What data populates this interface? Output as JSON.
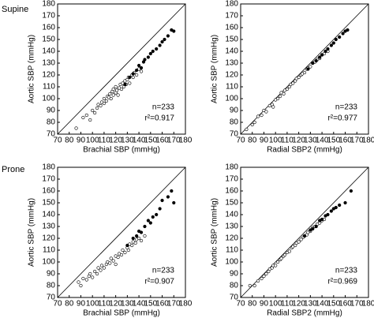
{
  "chart_data": [
    {
      "type": "scatter",
      "row_label": "Supine",
      "x_label": "Brachial SBP (mmHg)",
      "y_label": "Aortic SBP (mmHg)",
      "xlim": [
        70,
        180
      ],
      "ylim": [
        70,
        180
      ],
      "xticks": [
        70,
        80,
        90,
        100,
        110,
        120,
        130,
        140,
        150,
        160,
        170,
        180
      ],
      "yticks": [
        70,
        80,
        90,
        100,
        110,
        120,
        130,
        140,
        150,
        160,
        170,
        180
      ],
      "identity_line": true,
      "annotations": [
        "n=233",
        "r²=0.917"
      ],
      "series": [
        {
          "color": "#000000",
          "fill": "#ffffff",
          "x": [
            86,
            92,
            95,
            98,
            100,
            102,
            104,
            105,
            107,
            108,
            110,
            110,
            112,
            113,
            114,
            115,
            116,
            117,
            118,
            118,
            120,
            120,
            121,
            122,
            123,
            124,
            125,
            126,
            127,
            128,
            129,
            130,
            131,
            132,
            134,
            135,
            136,
            138,
            140,
            142
          ],
          "y": [
            75,
            84,
            86,
            82,
            90,
            88,
            92,
            95,
            94,
            97,
            96,
            100,
            98,
            102,
            101,
            104,
            100,
            106,
            103,
            108,
            105,
            110,
            107,
            103,
            109,
            112,
            108,
            113,
            110,
            115,
            112,
            116,
            118,
            113,
            120,
            118,
            122,
            120,
            125,
            123
          ]
        },
        {
          "color": "#000000",
          "fill": "#000000",
          "x": [
            128,
            132,
            135,
            138,
            140,
            142,
            144,
            145,
            148,
            150,
            152,
            155,
            158,
            160,
            162,
            165,
            168,
            170
          ],
          "y": [
            112,
            118,
            121,
            124,
            128,
            126,
            131,
            133,
            135,
            138,
            140,
            142,
            145,
            148,
            150,
            153,
            158,
            157
          ]
        }
      ]
    },
    {
      "type": "scatter",
      "x_label": "Radial SBP2 (mmHg)",
      "y_label": "Aortic SBP (mmHg)",
      "xlim": [
        70,
        180
      ],
      "ylim": [
        70,
        180
      ],
      "xticks": [
        70,
        80,
        90,
        100,
        110,
        120,
        130,
        140,
        150,
        160,
        170,
        180
      ],
      "yticks": [
        70,
        80,
        90,
        100,
        110,
        120,
        130,
        140,
        150,
        160,
        170,
        180
      ],
      "identity_line": true,
      "annotations": [
        "n=233",
        "r²=0.977"
      ],
      "series": [
        {
          "color": "#000000",
          "fill": "#ffffff",
          "x": [
            75,
            80,
            82,
            85,
            88,
            90,
            92,
            95,
            97,
            98,
            100,
            102,
            104,
            105,
            107,
            108,
            110,
            112,
            113,
            115,
            117,
            118,
            120,
            122,
            123,
            125,
            127,
            128,
            130,
            132,
            134,
            136,
            138,
            140,
            142,
            145
          ],
          "y": [
            74,
            78,
            80,
            85,
            86,
            90,
            89,
            94,
            95,
            93,
            99,
            100,
            102,
            105,
            104,
            107,
            108,
            110,
            112,
            113,
            115,
            117,
            118,
            120,
            121,
            122,
            125,
            126,
            127,
            130,
            131,
            133,
            134,
            137,
            138,
            140
          ]
        },
        {
          "color": "#000000",
          "fill": "#000000",
          "x": [
            128,
            132,
            135,
            138,
            140,
            143,
            145,
            148,
            150,
            152,
            155,
            158,
            160,
            162
          ],
          "y": [
            125,
            130,
            132,
            135,
            137,
            140,
            142,
            145,
            147,
            150,
            152,
            155,
            157,
            158
          ]
        }
      ]
    },
    {
      "type": "scatter",
      "row_label": "Prone",
      "x_label": "Brachial SBP (mmHg)",
      "y_label": "Aortic SBP (mmHg)",
      "xlim": [
        70,
        180
      ],
      "ylim": [
        70,
        180
      ],
      "xticks": [
        70,
        80,
        90,
        100,
        110,
        120,
        130,
        140,
        150,
        160,
        170,
        180
      ],
      "yticks": [
        70,
        80,
        90,
        100,
        110,
        120,
        130,
        140,
        150,
        160,
        170,
        180
      ],
      "identity_line": true,
      "annotations": [
        "n=233",
        "r²=0.907"
      ],
      "series": [
        {
          "color": "#000000",
          "fill": "#ffffff",
          "x": [
            88,
            90,
            92,
            95,
            97,
            98,
            100,
            102,
            104,
            105,
            107,
            108,
            110,
            112,
            113,
            115,
            116,
            118,
            120,
            120,
            122,
            123,
            125,
            126,
            128,
            130,
            131,
            132,
            134,
            135,
            137,
            138,
            140,
            142,
            145
          ],
          "y": [
            83,
            80,
            86,
            85,
            88,
            90,
            87,
            92,
            90,
            95,
            93,
            97,
            95,
            98,
            100,
            99,
            103,
            101,
            105,
            98,
            104,
            107,
            106,
            110,
            108,
            112,
            110,
            115,
            114,
            117,
            116,
            119,
            120,
            118,
            122
          ]
        },
        {
          "color": "#000000",
          "fill": "#000000",
          "x": [
            130,
            135,
            138,
            140,
            142,
            145,
            148,
            150,
            152,
            155,
            158,
            160,
            165,
            168,
            170
          ],
          "y": [
            114,
            120,
            122,
            126,
            125,
            130,
            135,
            133,
            138,
            140,
            145,
            152,
            155,
            160,
            150
          ]
        }
      ]
    },
    {
      "type": "scatter",
      "x_label": "Radial SBP2 (mmHg)",
      "y_label": "Aortic SBP (mmHg)",
      "xlim": [
        70,
        180
      ],
      "ylim": [
        70,
        180
      ],
      "xticks": [
        70,
        80,
        90,
        100,
        110,
        120,
        130,
        140,
        150,
        160,
        170,
        180
      ],
      "yticks": [
        70,
        80,
        90,
        100,
        110,
        120,
        130,
        140,
        150,
        160,
        170,
        180
      ],
      "identity_line": true,
      "annotations": [
        "n=233",
        "r²=0.969"
      ],
      "series": [
        {
          "color": "#000000",
          "fill": "#ffffff",
          "x": [
            78,
            82,
            85,
            88,
            90,
            92,
            94,
            95,
            97,
            98,
            100,
            102,
            104,
            105,
            107,
            108,
            110,
            112,
            114,
            115,
            117,
            118,
            120,
            122,
            124,
            125,
            127,
            128,
            130,
            132,
            134,
            136,
            138,
            140,
            142
          ],
          "y": [
            80,
            80,
            84,
            86,
            88,
            90,
            92,
            94,
            95,
            97,
            97,
            100,
            102,
            103,
            105,
            106,
            108,
            109,
            112,
            113,
            114,
            116,
            117,
            119,
            121,
            122,
            123,
            125,
            126,
            129,
            130,
            132,
            133,
            135,
            136
          ]
        },
        {
          "color": "#000000",
          "fill": "#000000",
          "x": [
            125,
            130,
            132,
            135,
            138,
            140,
            143,
            145,
            148,
            150,
            152,
            155,
            160,
            165
          ],
          "y": [
            122,
            127,
            128,
            130,
            135,
            136,
            139,
            140,
            143,
            145,
            146,
            148,
            150,
            160
          ]
        }
      ]
    }
  ]
}
